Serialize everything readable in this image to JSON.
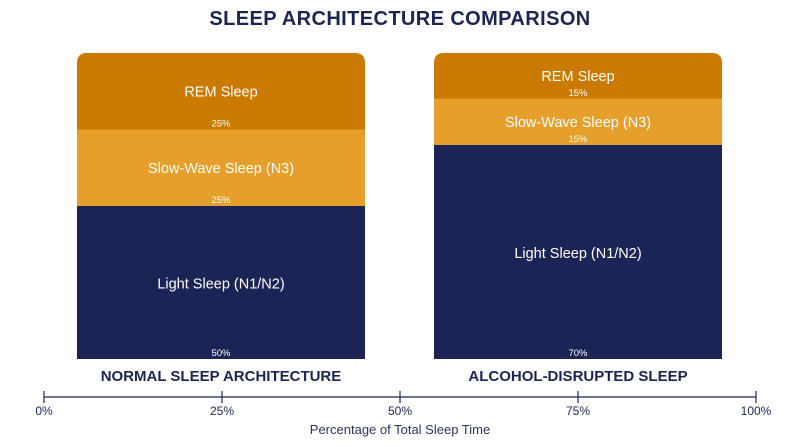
{
  "chart_data": {
    "type": "bar",
    "subtype": "stacked-100",
    "title": "SLEEP ARCHITECTURE COMPARISON",
    "xlabel": "Percentage of Total Sleep Time",
    "ylabel": "",
    "categories": [
      "NORMAL SLEEP ARCHITECTURE",
      "ALCOHOL-DISRUPTED SLEEP"
    ],
    "series": [
      {
        "name": "Light Sleep (N1/N2)",
        "values": [
          50,
          70
        ],
        "labels": [
          "50%",
          "70%"
        ],
        "color": "#1b2455"
      },
      {
        "name": "Slow-Wave Sleep (N3)",
        "values": [
          25,
          15
        ],
        "labels": [
          "25%",
          "15%"
        ],
        "color": "#e69f2a"
      },
      {
        "name": "REM Sleep",
        "values": [
          25,
          15
        ],
        "labels": [
          "25%",
          "15%"
        ],
        "color": "#cb7a00"
      }
    ],
    "xlim": [
      0,
      100
    ],
    "ticks": [
      "0%",
      "25%",
      "50%",
      "75%",
      "100%"
    ],
    "tick_values": [
      0,
      25,
      50,
      75,
      100
    ],
    "grid": false,
    "legend": "none"
  },
  "colors": {
    "title": "#1b2455",
    "text_dark": "#1b2455",
    "text_light": "#ffffff",
    "axis": "#1b2455",
    "axis_title": "#2b3560"
  }
}
